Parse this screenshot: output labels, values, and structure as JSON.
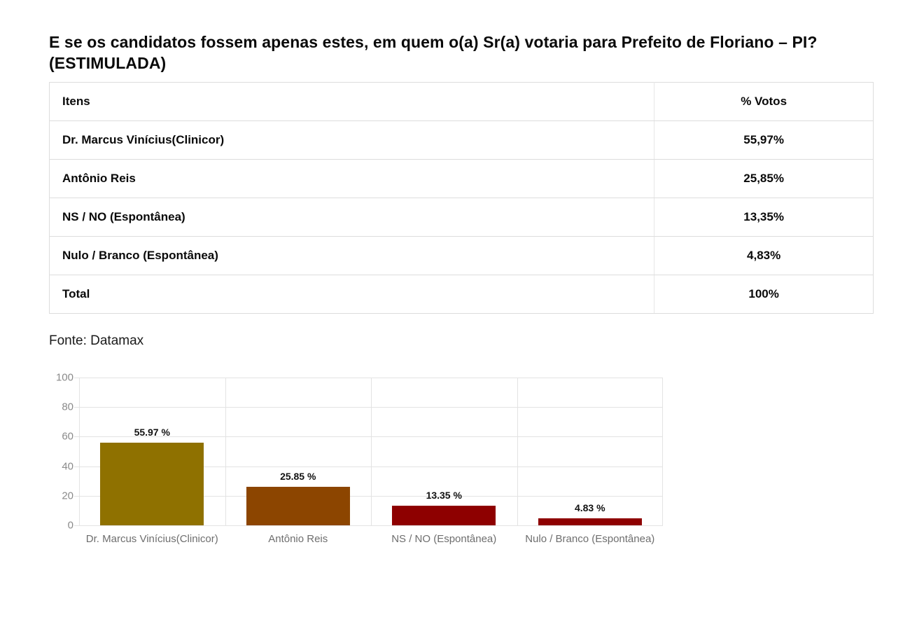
{
  "page": {
    "title": "E se os candidatos fossem apenas estes, em quem o(a) Sr(a) votaria para Prefeito de Floriano – PI? (ESTIMULADA)",
    "source": "Fonte: Datamax"
  },
  "table": {
    "columns": [
      "Itens",
      "% Votos"
    ],
    "rows": [
      {
        "item": "Dr. Marcus Vinícius(Clinicor)",
        "votes": "55,97%"
      },
      {
        "item": "Antônio Reis",
        "votes": "25,85%"
      },
      {
        "item": "NS / NO (Espontânea)",
        "votes": "13,35%"
      },
      {
        "item": "Nulo / Branco (Espontânea)",
        "votes": "4,83%"
      },
      {
        "item": "Total",
        "votes": "100%"
      }
    ]
  },
  "chart_data": {
    "type": "bar",
    "categories": [
      "Dr. Marcus Vinícius(Clinicor)",
      "Antônio Reis",
      "NS / NO (Espontânea)",
      "Nulo / Branco (Espontânea)"
    ],
    "values": [
      55.97,
      25.85,
      13.35,
      4.83
    ],
    "value_labels": [
      "55.97 %",
      "25.85 %",
      "13.35 %",
      "4.83 %"
    ],
    "bar_colors": [
      "#8f7100",
      "#8c4500",
      "#8e0000",
      "#8e0000"
    ],
    "title": "",
    "xlabel": "",
    "ylabel": "",
    "ylim": [
      0,
      100
    ],
    "yticks": [
      0,
      20,
      40,
      60,
      80,
      100
    ],
    "grid": true,
    "legend": false,
    "colors": {
      "gridline": "#e3e3e3",
      "y_tick_label": "#8a8a8a",
      "x_axis_label": "#6e6e6e",
      "value_label": "#111111"
    }
  }
}
